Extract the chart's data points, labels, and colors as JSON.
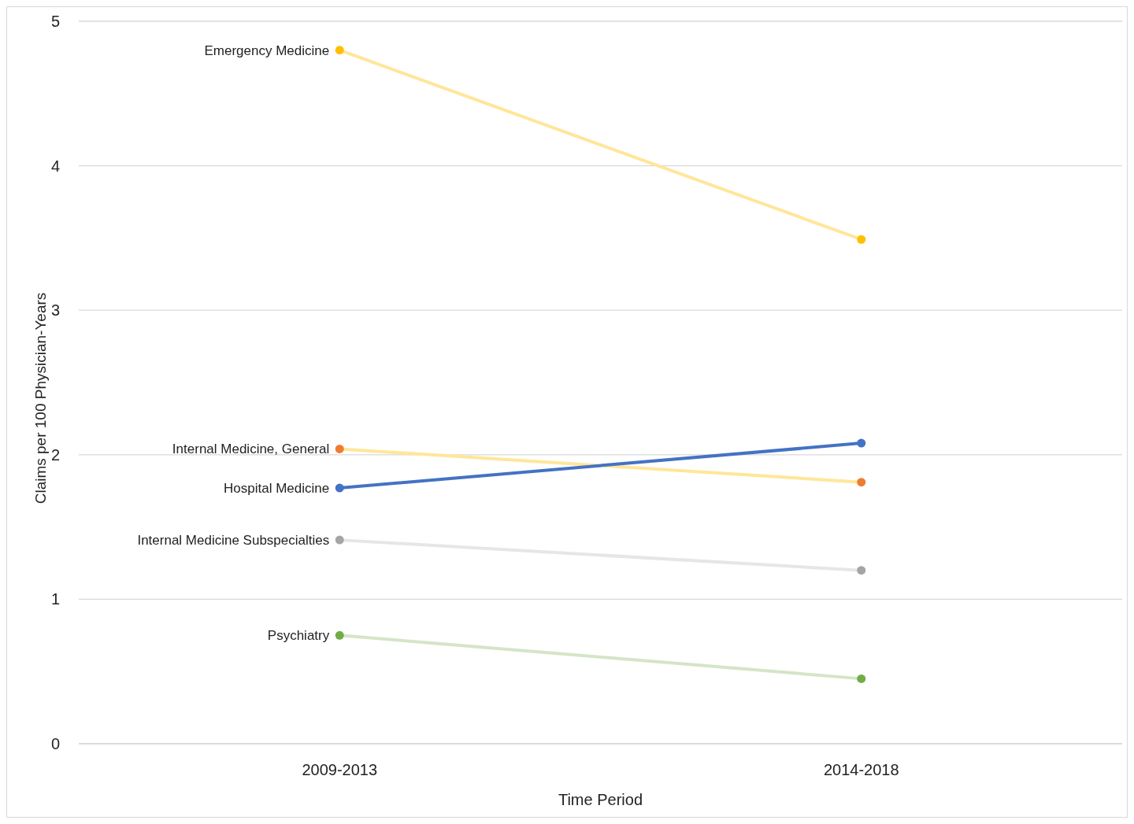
{
  "chart_data": {
    "type": "line",
    "xlabel": "Time Period",
    "ylabel": "Claims per 100 Physician-Years",
    "categories": [
      "2009-2013",
      "2014-2018"
    ],
    "series": [
      {
        "name": "Emergency Medicine",
        "color": "#ffe699",
        "colors": [
          "#ffc000",
          "#ffc000"
        ],
        "values": [
          4.8,
          3.49
        ]
      },
      {
        "name": "Internal Medicine, General",
        "color": "#ffe699",
        "colors": [
          "#ed7d31",
          "#ed7d31"
        ],
        "values": [
          2.04,
          1.81
        ]
      },
      {
        "name": "Hospital Medicine",
        "color": "#4472c4",
        "colors": [
          "#4472c4",
          "#4472c4"
        ],
        "values": [
          1.77,
          2.08
        ]
      },
      {
        "name": "Internal Medicine Subspecialties",
        "color": "#e7e6e6",
        "colors": [
          "#a5a5a5",
          "#a5a5a5"
        ],
        "values": [
          1.41,
          1.2
        ]
      },
      {
        "name": "Psychiatry",
        "color": "#d5e5c8",
        "colors": [
          "#70ad47",
          "#70ad47"
        ],
        "values": [
          0.75,
          0.45
        ]
      }
    ],
    "ylim": [
      0,
      5
    ],
    "yticks": [
      0,
      1,
      2,
      3,
      4,
      5
    ],
    "grid": "y",
    "marker": "circle",
    "line_style": "solid"
  }
}
